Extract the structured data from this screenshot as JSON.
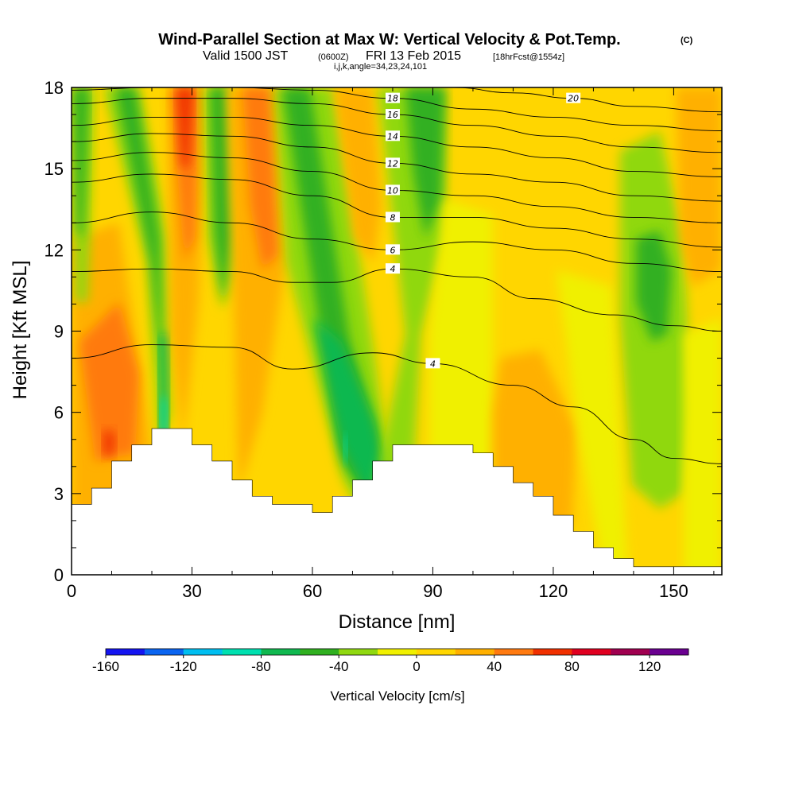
{
  "header": {
    "title_main": "Wind-Parallel Section at Max W: Vertical Velocity & Pot.Temp.",
    "title_mark": "(C)",
    "valid_a": "Valid 1500 JST",
    "valid_b": "(0600Z)",
    "valid_c": "FRI 13 Feb 2015",
    "valid_d": "[18hrFcst@1554z]",
    "ijk": "i,j,k,angle=34,23,24,101"
  },
  "chart_data": {
    "type": "heatmap",
    "title": "Wind-Parallel Section at Max W: Vertical Velocity & Pot.Temp.",
    "xlabel": "Distance [nm]",
    "ylabel": "Height [Kft MSL]",
    "xlim": [
      0,
      162
    ],
    "ylim": [
      0,
      18
    ],
    "x_ticks": [
      0,
      30,
      60,
      90,
      120,
      150
    ],
    "y_ticks": [
      0,
      3,
      6,
      9,
      12,
      15,
      18
    ],
    "colorbar": {
      "label": "Vertical Velocity [cm/s]",
      "tick_values": [
        -160,
        -120,
        -80,
        -40,
        0,
        40,
        80,
        120
      ],
      "levels": [
        -160,
        -140,
        -120,
        -100,
        -80,
        -60,
        -40,
        -20,
        0,
        20,
        40,
        60,
        80,
        100,
        120,
        140
      ],
      "colors": [
        "#1414f0",
        "#0a64f0",
        "#00bef0",
        "#00e0b0",
        "#10b850",
        "#30b020",
        "#90d810",
        "#f0f000",
        "#ffd600",
        "#ffb000",
        "#ff7a10",
        "#f03000",
        "#e00020",
        "#a00050",
        "#6a0090"
      ]
    },
    "terrain": [
      [
        0,
        2.6
      ],
      [
        5,
        2.6
      ],
      [
        5,
        3.2
      ],
      [
        10,
        3.2
      ],
      [
        10,
        4.2
      ],
      [
        15,
        4.2
      ],
      [
        15,
        4.8
      ],
      [
        20,
        4.8
      ],
      [
        20,
        5.4
      ],
      [
        30,
        5.4
      ],
      [
        30,
        4.8
      ],
      [
        35,
        4.8
      ],
      [
        35,
        4.2
      ],
      [
        40,
        4.2
      ],
      [
        40,
        3.5
      ],
      [
        45,
        3.5
      ],
      [
        45,
        2.9
      ],
      [
        50,
        2.9
      ],
      [
        50,
        2.6
      ],
      [
        60,
        2.6
      ],
      [
        60,
        2.3
      ],
      [
        65,
        2.3
      ],
      [
        65,
        2.9
      ],
      [
        70,
        2.9
      ],
      [
        70,
        3.5
      ],
      [
        75,
        3.5
      ],
      [
        75,
        4.2
      ],
      [
        80,
        4.2
      ],
      [
        80,
        4.8
      ],
      [
        85,
        4.8
      ],
      [
        85,
        4.8
      ],
      [
        100,
        4.8
      ],
      [
        100,
        4.5
      ],
      [
        105,
        4.5
      ],
      [
        105,
        4.0
      ],
      [
        110,
        4.0
      ],
      [
        110,
        3.4
      ],
      [
        115,
        3.4
      ],
      [
        115,
        2.9
      ],
      [
        120,
        2.9
      ],
      [
        120,
        2.2
      ],
      [
        125,
        2.2
      ],
      [
        125,
        1.6
      ],
      [
        130,
        1.6
      ],
      [
        130,
        1.0
      ],
      [
        135,
        1.0
      ],
      [
        135,
        0.6
      ],
      [
        140,
        0.6
      ],
      [
        140,
        0.3
      ],
      [
        162,
        0.3
      ]
    ],
    "theta_contours": [
      {
        "label": "4",
        "points": [
          [
            0,
            11.2
          ],
          [
            20,
            11.3
          ],
          [
            40,
            11.2
          ],
          [
            55,
            10.8
          ],
          [
            65,
            10.8
          ],
          [
            80,
            11.3
          ],
          [
            100,
            11.0
          ],
          [
            115,
            10.2
          ],
          [
            135,
            9.6
          ],
          [
            150,
            9.2
          ],
          [
            162,
            9.0
          ]
        ]
      },
      {
        "label": "4",
        "points": [
          [
            0,
            8.0
          ],
          [
            20,
            8.5
          ],
          [
            40,
            8.4
          ],
          [
            55,
            7.6
          ],
          [
            75,
            8.2
          ],
          [
            90,
            7.8
          ],
          [
            110,
            7.0
          ],
          [
            125,
            6.2
          ],
          [
            140,
            5.0
          ],
          [
            150,
            4.3
          ],
          [
            162,
            4.1
          ]
        ]
      },
      {
        "label": "6",
        "points": [
          [
            0,
            13.0
          ],
          [
            20,
            13.4
          ],
          [
            40,
            13.0
          ],
          [
            60,
            12.4
          ],
          [
            80,
            12.0
          ],
          [
            100,
            12.3
          ],
          [
            120,
            12.0
          ],
          [
            140,
            11.5
          ],
          [
            162,
            11.2
          ]
        ]
      },
      {
        "label": "8",
        "points": [
          [
            0,
            14.5
          ],
          [
            20,
            14.8
          ],
          [
            40,
            14.6
          ],
          [
            60,
            14.0
          ],
          [
            80,
            13.2
          ],
          [
            100,
            13.2
          ],
          [
            120,
            12.8
          ],
          [
            140,
            12.4
          ],
          [
            162,
            12.1
          ]
        ]
      },
      {
        "label": "10",
        "points": [
          [
            0,
            15.3
          ],
          [
            20,
            15.6
          ],
          [
            40,
            15.4
          ],
          [
            60,
            14.9
          ],
          [
            80,
            14.2
          ],
          [
            100,
            14.0
          ],
          [
            120,
            13.6
          ],
          [
            140,
            13.2
          ],
          [
            162,
            13.0
          ]
        ]
      },
      {
        "label": "12",
        "points": [
          [
            0,
            16.0
          ],
          [
            20,
            16.3
          ],
          [
            40,
            16.2
          ],
          [
            60,
            15.8
          ],
          [
            80,
            15.2
          ],
          [
            100,
            14.8
          ],
          [
            120,
            14.5
          ],
          [
            140,
            14.0
          ],
          [
            162,
            13.8
          ]
        ]
      },
      {
        "label": "14",
        "points": [
          [
            0,
            16.6
          ],
          [
            20,
            16.9
          ],
          [
            40,
            16.9
          ],
          [
            60,
            16.6
          ],
          [
            80,
            16.2
          ],
          [
            100,
            15.8
          ],
          [
            120,
            15.4
          ],
          [
            140,
            14.9
          ],
          [
            162,
            14.7
          ]
        ]
      },
      {
        "label": "16",
        "points": [
          [
            0,
            17.4
          ],
          [
            20,
            17.6
          ],
          [
            40,
            17.6
          ],
          [
            60,
            17.4
          ],
          [
            80,
            17.0
          ],
          [
            100,
            16.6
          ],
          [
            120,
            16.2
          ],
          [
            140,
            15.8
          ],
          [
            162,
            15.6
          ]
        ]
      },
      {
        "label": "18",
        "points": [
          [
            0,
            17.9
          ],
          [
            20,
            18.0
          ],
          [
            40,
            18.0
          ],
          [
            60,
            17.9
          ],
          [
            80,
            17.6
          ],
          [
            100,
            17.2
          ],
          [
            120,
            16.9
          ],
          [
            140,
            16.6
          ],
          [
            162,
            16.4
          ]
        ]
      },
      {
        "label": "20",
        "points": [
          [
            95,
            18.0
          ],
          [
            110,
            17.8
          ],
          [
            125,
            17.6
          ],
          [
            140,
            17.3
          ],
          [
            162,
            17.1
          ]
        ]
      }
    ]
  }
}
